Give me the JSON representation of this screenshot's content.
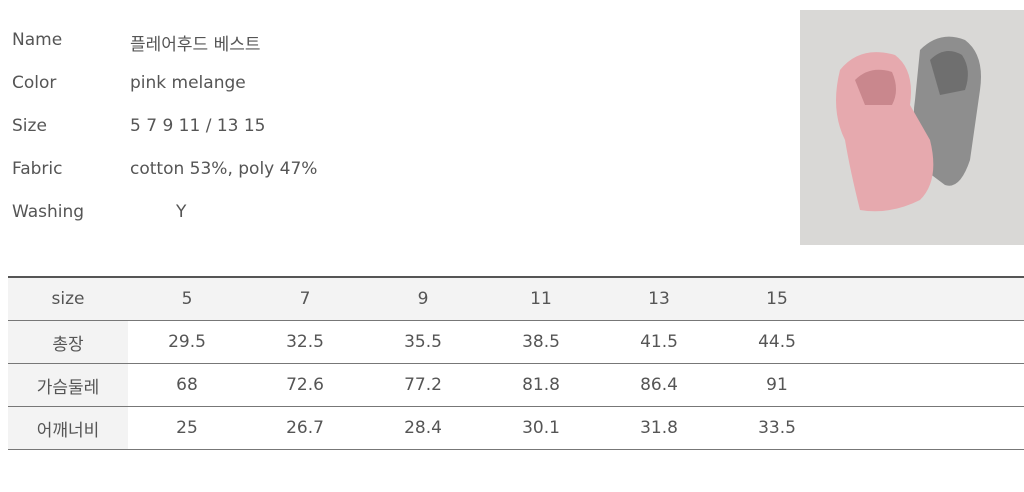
{
  "product": {
    "rows": [
      {
        "label": "Name",
        "value": "플레어후드 베스트"
      },
      {
        "label": "Color",
        "value": "pink melange"
      },
      {
        "label": "Size",
        "value": "5 7 9 11  / 13 15"
      },
      {
        "label": "Fabric",
        "value": "cotton 53%, poly 47%"
      },
      {
        "label": "Washing",
        "value": "Y"
      }
    ]
  },
  "table": {
    "header": [
      "size",
      "5",
      "7",
      "9",
      "11",
      "13",
      "15"
    ],
    "rows": [
      [
        "총장",
        "29.5",
        "32.5",
        "35.5",
        "38.5",
        "41.5",
        "44.5"
      ],
      [
        "가슴둘레",
        "68",
        "72.6",
        "77.2",
        "81.8",
        "86.4",
        "91"
      ],
      [
        "어깨너비",
        "25",
        "26.7",
        "28.4",
        "30.1",
        "31.8",
        "33.5"
      ]
    ]
  }
}
